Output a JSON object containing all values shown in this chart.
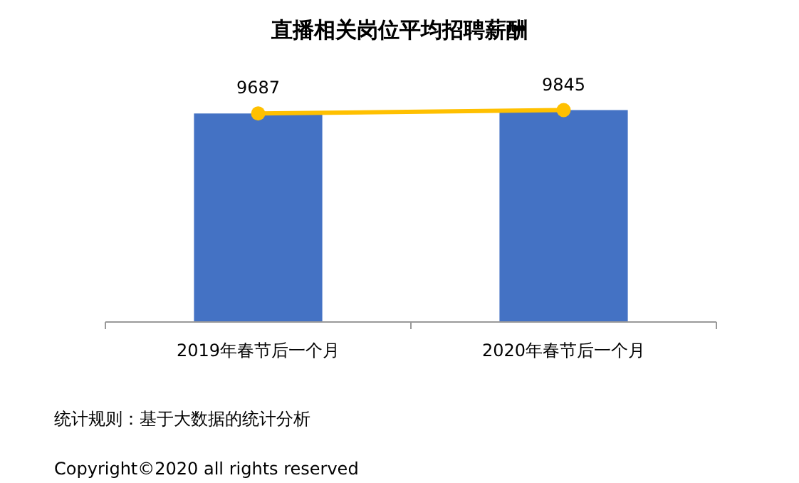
{
  "chart_data": {
    "type": "bar",
    "title": "直播相关岗位平均招聘薪酬",
    "categories": [
      "2019年春节后一个月",
      "2020年春节后一个月"
    ],
    "series": [
      {
        "color": "#4472c4",
        "values": [
          9687,
          9845
        ]
      },
      {
        "type": "line",
        "color": "#ffc000",
        "values": [
          9687,
          9845
        ],
        "marker": "circle",
        "value_labels": [
          "9687",
          "9845"
        ]
      }
    ],
    "tick_labels": "x",
    "grid": false,
    "annotations": [
      "统计规则：基于大数据的统计分析",
      "Copyright©2020 all rights reserved"
    ]
  }
}
